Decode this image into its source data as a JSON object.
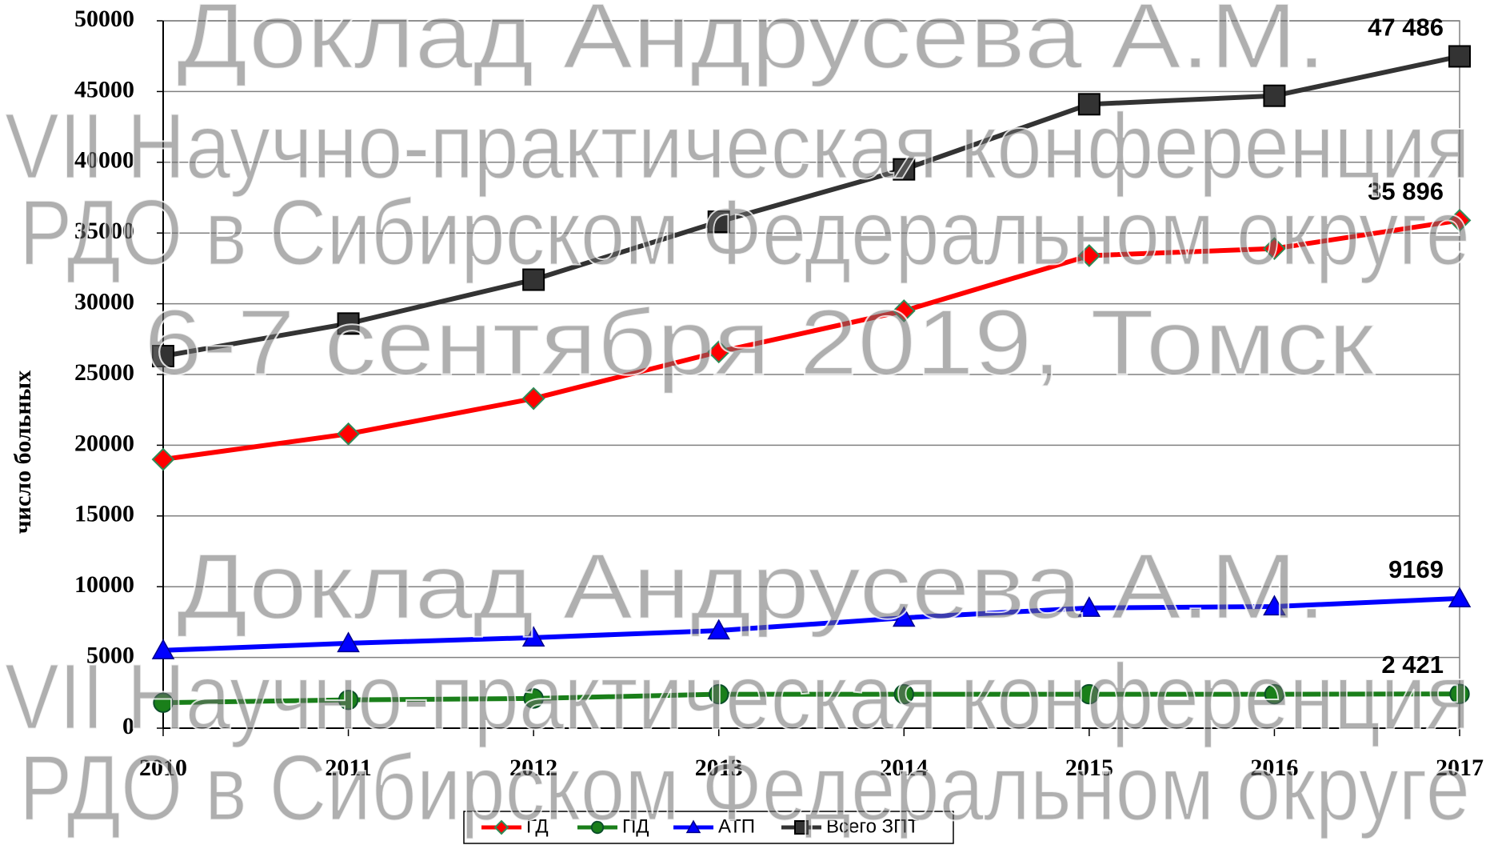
{
  "chart_data": {
    "type": "line",
    "y_label": "число больных",
    "categories": [
      "2010",
      "2011",
      "2012",
      "2013",
      "2014",
      "2015",
      "2016",
      "2017"
    ],
    "ylim": [
      0,
      50000
    ],
    "yticks": [
      0,
      5000,
      10000,
      15000,
      20000,
      25000,
      30000,
      35000,
      40000,
      45000,
      50000
    ],
    "grid": true,
    "legend": "bottom",
    "series": [
      {
        "name": "ГД",
        "color": "#ff0000",
        "marker": "diamond",
        "values": [
          19000,
          20800,
          23300,
          26600,
          29500,
          33400,
          33900,
          35896
        ],
        "value_labels": [
          null,
          null,
          null,
          null,
          null,
          null,
          null,
          "35 896"
        ]
      },
      {
        "name": "ПД",
        "color": "#1a7f1a",
        "marker": "circle",
        "values": [
          1800,
          2000,
          2100,
          2400,
          2400,
          2400,
          2400,
          2421
        ],
        "value_labels": [
          null,
          null,
          null,
          null,
          null,
          null,
          null,
          "2 421"
        ]
      },
      {
        "name": "АТП",
        "color": "#0000ff",
        "marker": "triangle",
        "values": [
          5500,
          6000,
          6400,
          6900,
          7800,
          8500,
          8600,
          9169
        ],
        "value_labels": [
          null,
          null,
          null,
          null,
          null,
          null,
          null,
          "9169"
        ]
      },
      {
        "name": "Всего ЗПТ",
        "color": "#333333",
        "marker": "square",
        "values": [
          26300,
          28600,
          31700,
          35800,
          39500,
          44100,
          44700,
          47486
        ],
        "value_labels": [
          null,
          null,
          null,
          null,
          null,
          null,
          null,
          "47 486"
        ]
      }
    ]
  },
  "watermark": [
    "Доклад Андрусева А.М.",
    "VII Научно-практическая конференция",
    "РДО в Сибирском Федеральном округе",
    "6-7 сентября 2019, Томск"
  ]
}
